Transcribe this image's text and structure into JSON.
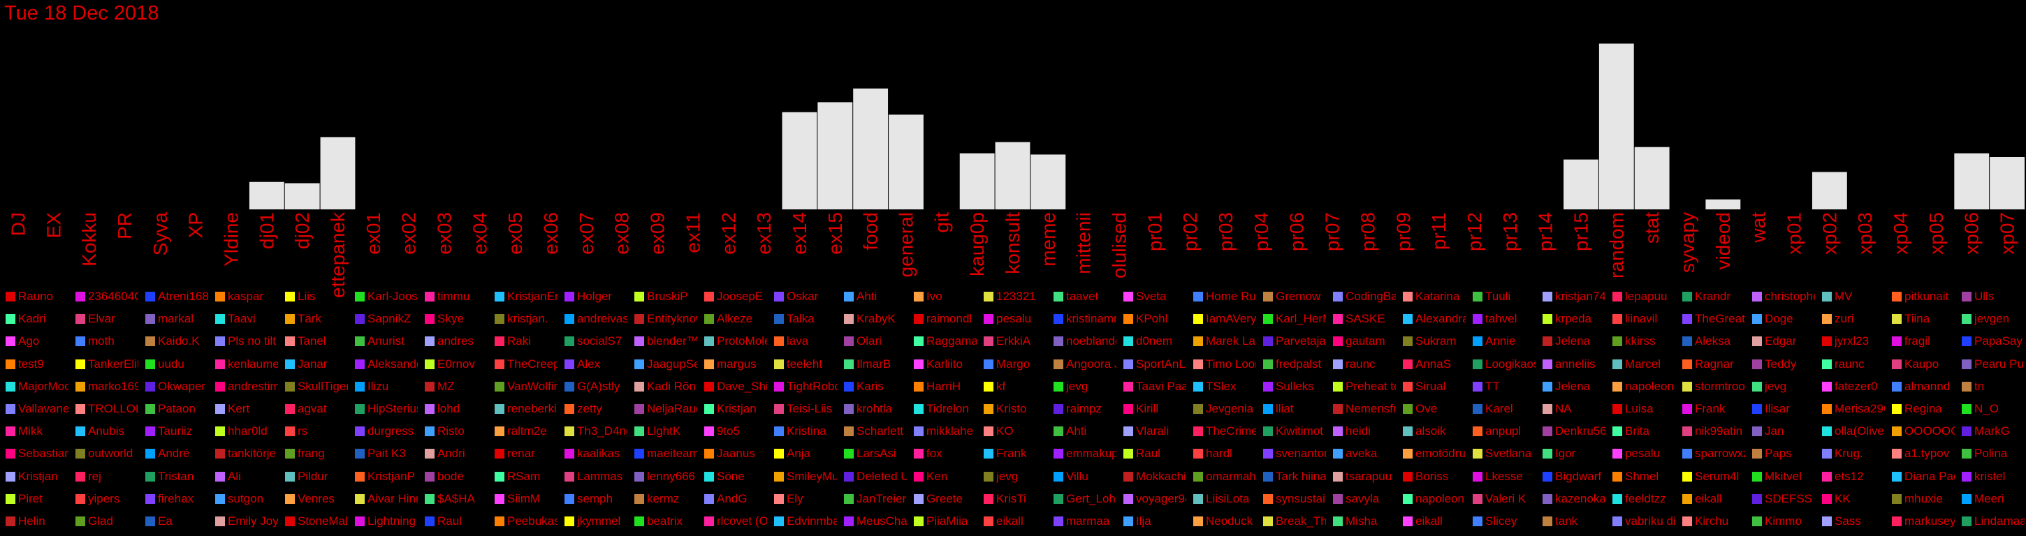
{
  "title": "Tue 18 Dec 2018",
  "chart_data": {
    "type": "bar",
    "categories": [
      "DJ",
      "EX",
      "Kokku",
      "PR",
      "Syva",
      "XP",
      "Yldine",
      "dj01",
      "dj02",
      "ettepanek",
      "ex01",
      "ex02",
      "ex03",
      "ex04",
      "ex05",
      "ex06",
      "ex07",
      "ex08",
      "ex09",
      "ex11",
      "ex12",
      "ex13",
      "ex14",
      "ex15",
      "food",
      "general",
      "git",
      "kaug0p",
      "konsult",
      "meme",
      "mittenii",
      "olulised",
      "pr01",
      "pr02",
      "pr03",
      "pr04",
      "pr06",
      "pr07",
      "pr08",
      "pr09",
      "pr11",
      "pr12",
      "pr13",
      "pr14",
      "pr15",
      "random",
      "stat",
      "syvapy",
      "videod",
      "wat",
      "xp01",
      "xp02",
      "xp03",
      "xp04",
      "xp05",
      "xp06",
      "xp07"
    ],
    "values": [
      0,
      0,
      0,
      0,
      0,
      0,
      0,
      22,
      21,
      58,
      0,
      0,
      0,
      0,
      0,
      0,
      0,
      0,
      0,
      0,
      0,
      0,
      78,
      86,
      97,
      76,
      0,
      45,
      54,
      44,
      0,
      0,
      0,
      0,
      0,
      0,
      0,
      0,
      0,
      0,
      0,
      0,
      0,
      0,
      40,
      133,
      50,
      0,
      8,
      0,
      0,
      30,
      0,
      0,
      0,
      45,
      42
    ],
    "ylim": [
      0,
      140
    ]
  },
  "legend": {
    "rows": [
      [
        "Rauno",
        "2364604C",
        "Atreni168",
        "kaspar",
        "Liis",
        "Karl-Joosep",
        "timmu",
        "KristjanEric",
        "Holger",
        "BruskiP",
        "JoosepE",
        "Oskar",
        "Ahti",
        "Ivo",
        "123321",
        "taavet",
        "Sveta",
        "Home Run",
        "Gremow",
        "CodingBad",
        "Katarina",
        "Tuuli",
        "kristjan74",
        "lepapuu",
        "Krandr",
        "christophe",
        "MV",
        "pitkunait",
        "Ulls"
      ],
      [
        "Kadri",
        "Elvar",
        "markal",
        "Taavi",
        "Tärk",
        "SapnikZ",
        "Skye",
        "kristjan.",
        "andreivas",
        "Entityknow",
        "Alkeze",
        "Talka",
        "KrabyK",
        "raimondl",
        "pesalu",
        "kristinamm",
        "KPohl",
        "IamAVeryF",
        "Karl_HerM",
        "SASKE",
        "Alexandra",
        "tahvel",
        "krpeda",
        "liinavil",
        "TheGreatL",
        "Doge",
        "zuri",
        "Tiina",
        "jevgen"
      ],
      [
        "Ago",
        "moth",
        "Kaido.K",
        "Pls no tilt",
        "Tanel",
        "Anurist",
        "andres",
        "Raki",
        "socialS7",
        "blender™",
        "ProtoMole",
        "lava",
        "Olari",
        "Raggamas",
        "ErkkiA",
        "noeblande",
        "d0nem",
        "Marek Lah",
        "Parvetaja",
        "gautam",
        "Sukram",
        "Annie",
        "Jelena",
        "kkirss",
        "Aleksa",
        "Edgar",
        "jyrxl23",
        "fragil",
        "PapaSay"
      ],
      [
        "test9",
        "TankerElit",
        "uudu",
        "kenlaumet",
        "Janar",
        "Aleksande",
        "E0rnov",
        "TheCreepy",
        "Alex",
        "JaagupSel",
        "margus",
        "teeleht",
        "IlmarB",
        "Karliito",
        "Margo",
        "Angoora J",
        "SportAnLif",
        "Timo Loon",
        "fredpalst",
        "raunc",
        "AnnaS",
        "Loogikaos",
        "anneliis",
        "Marcel",
        "Ragnar",
        "Teddy",
        "raunc",
        "Kaupo",
        "Pearu Pu"
      ],
      [
        "MajorMoo",
        "marko169",
        "Okwaper",
        "andrestim",
        "SkullTiger",
        "Ilizu",
        "MZ",
        "VanWolfing",
        "G(A)stly",
        "Kadi Rõn",
        "Dave_Shin",
        "TightRobot",
        "Karis",
        "HarriH",
        "kf",
        "jevg",
        "Taavi Paal",
        "TSlex",
        "Sulleks",
        "Preheat to",
        "Sirual",
        "TT",
        "Jelena",
        "napoleon",
        "stormtroo",
        "jevg",
        "fatezer0",
        "almannd",
        "tn"
      ],
      [
        "Vallavanem",
        "TROLLOLOL",
        "Pataon",
        "Kert",
        "agvat",
        "HipSterius",
        "lohd",
        "reneberkin",
        "zetty",
        "NeljaRaudl",
        "Kristjan",
        "Teisi-Liis",
        "krohtla",
        "Tidrelon",
        "Kristo",
        "raimpz",
        "Kirill",
        "Jevgenia",
        "lliat",
        "Nemensfn",
        "Ove",
        "Karel",
        "NA",
        "Luisa",
        "Frank",
        "Ilisar",
        "Merisa29C",
        "Regina",
        "N_O"
      ],
      [
        "Mikk",
        "Anubis",
        "Tauriiz",
        "hhar0ld",
        "rs",
        "durgress",
        "Risto",
        "raltm2e",
        "Th3_D4ng3",
        "LlghtK",
        "9to5",
        "Kristina",
        "Scharlett",
        "mikklahe",
        "KO",
        "Ahti",
        "Vlarali",
        "TheCrimel",
        "Kiwitimot",
        "heidi",
        "alsoik",
        "anpupl",
        "Denkru56",
        "Brita",
        "nik99atin",
        "Jan",
        "olla(Oliver",
        "OOOOOOO",
        "MarkG"
      ],
      [
        "Sebastian",
        "outworld",
        "André",
        "tankitörje",
        "frang",
        "Pait K3",
        "Andri",
        "renar",
        "kaalikas",
        "maeiteami",
        "Jaanus",
        "Anja",
        "LarsAsi",
        "fox",
        "Frank",
        "emmakupi",
        "Raul",
        "hardl",
        "svenanton",
        "aveka",
        "emotödrul",
        "Svetlana",
        "Igor",
        "pesalu",
        "sparrowxz",
        "Paps",
        "Krug.",
        "a1.typov",
        "Polina"
      ],
      [
        "Kristjan",
        "rej",
        "Tristan",
        "Ali",
        "Pildur",
        "KristjanP",
        "bode",
        "RSam",
        "Lammas",
        "lenny666",
        "Söne",
        "SmileyMun",
        "Deleted Us",
        "Ken",
        "jevg",
        "Villu",
        "Mokkachin",
        "omarmahl",
        "Tark hiina",
        "tsarapuu",
        "Boriss",
        "Lkesse",
        "Bigdwarf",
        "Shmel",
        "Serum4l",
        "Mkitvel",
        "ets12",
        "Diana Pac",
        "kristel"
      ],
      [
        "Piret",
        "yipers",
        "firehax",
        "sutgon",
        "Venres",
        "Aivar Hinr",
        "$A$HA",
        "SiimM",
        "semph",
        "kermz",
        "AndG",
        "Ely",
        "JanTreier",
        "Greete",
        "KrisTi",
        "Gert_Lohn",
        "voyager94",
        "LiisiLota",
        "synsustai",
        "savyla",
        "napoleon",
        "Valeri K",
        "kazenokan",
        "feeldtzz",
        "eikall",
        "SDEFSS",
        "KK",
        "mhuxie",
        "Meeri"
      ],
      [
        "Helin",
        "Glad",
        "Ea",
        "Emily Joy",
        "StoneMalo",
        "Lightning",
        "Raul",
        "Peebukasl",
        "jkymmel",
        "beatrix",
        "rlcovet (O",
        "Edvinmbal",
        "MeusChap",
        "PiiaMiia",
        "eikall",
        "marmaa",
        "Ilja",
        "Neoduck",
        "Break_The",
        "Misha",
        "eikall",
        "Slicey",
        "tank",
        "vabriku dil",
        "Kirchu",
        "Kimmo",
        "Sass",
        "markusey",
        "Lindamaa"
      ]
    ],
    "colors": [
      "#e00000",
      "#e010e0",
      "#2040ff",
      "#ff8000",
      "#ffff00",
      "#20e020",
      "#ff20a0",
      "#20c0ff",
      "#a020ff",
      "#c0ff20",
      "#ff4040",
      "#8040ff",
      "#40a0ff",
      "#ffa040",
      "#e0e040",
      "#40e080",
      "#ff40ff",
      "#4080ff",
      "#c08040",
      "#8080ff",
      "#ff8080",
      "#40c040",
      "#a0a0ff",
      "#ff2060",
      "#20a060",
      "#c060ff",
      "#60c0c0",
      "#ff6020",
      "#a040a0",
      "#40ffa0",
      "#e04080",
      "#8060c0",
      "#20e0e0",
      "#f0a000",
      "#6020e0",
      "#ff0080",
      "#808020",
      "#00a0ff",
      "#c02020",
      "#60a020",
      "#2060c0",
      "#e0a0a0"
    ]
  }
}
